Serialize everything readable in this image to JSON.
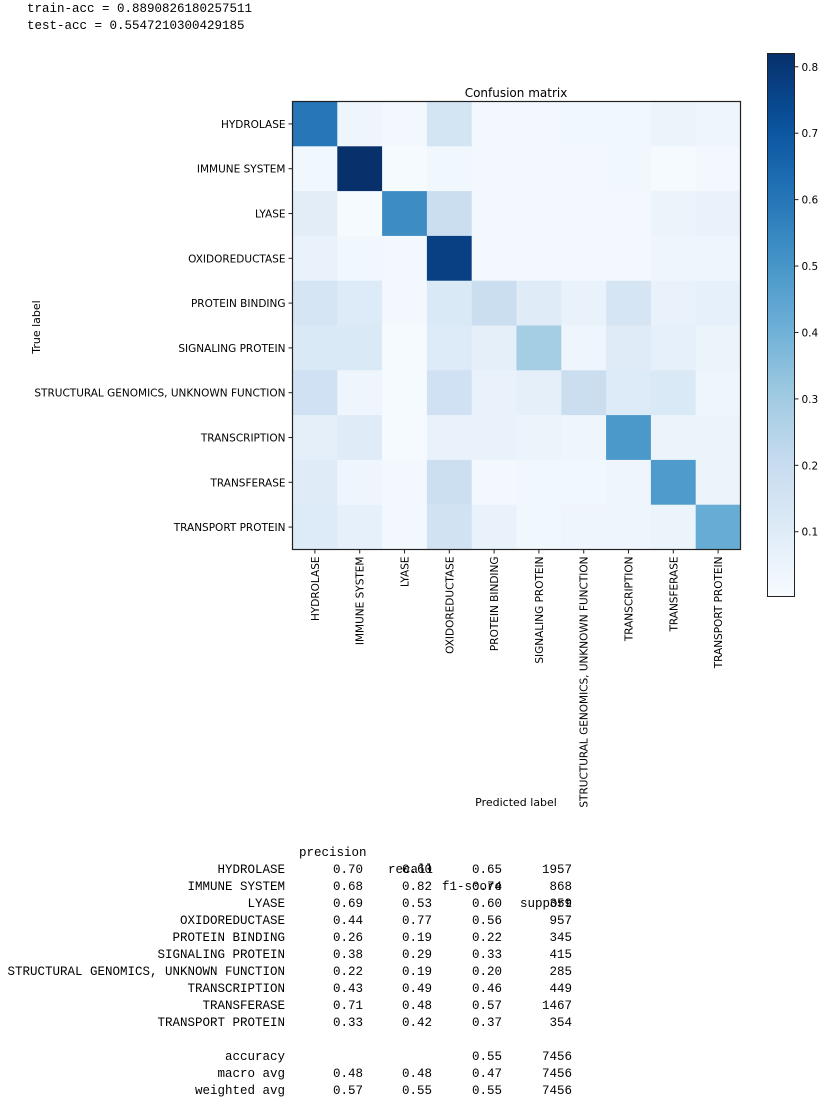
{
  "output": {
    "train_acc_line": "train-acc = 0.8890826180257511",
    "test_acc_line": "test-acc = 0.5547210300429185"
  },
  "chart_data": {
    "type": "heatmap",
    "title": "Confusion matrix",
    "xlabel": "Predicted label",
    "ylabel": "True label",
    "colormap": "Blues",
    "normalized": true,
    "color_range": [
      0.0025,
      0.82
    ],
    "colorbar_ticks": [
      "0.1",
      "0.2",
      "0.3",
      "0.4",
      "0.5",
      "0.6",
      "0.7",
      "0.8"
    ],
    "colorbar_tick_values": [
      0.1,
      0.2,
      0.3,
      0.4,
      0.5,
      0.6,
      0.7,
      0.8
    ],
    "rows": [
      "HYDROLASE",
      "IMMUNE SYSTEM",
      "LYASE",
      "OXIDOREDUCTASE",
      "PROTEIN BINDING",
      "SIGNALING PROTEIN",
      "STRUCTURAL GENOMICS, UNKNOWN FUNCTION",
      "TRANSCRIPTION",
      "TRANSFERASE",
      "TRANSPORT PROTEIN"
    ],
    "columns": [
      "HYDROLASE",
      "IMMUNE SYSTEM",
      "LYASE",
      "OXIDOREDUCTASE",
      "PROTEIN BINDING",
      "SIGNALING PROTEIN",
      "STRUCTURAL GENOMICS, UNKNOWN FUNCTION",
      "TRANSCRIPTION",
      "TRANSFERASE",
      "TRANSPORT PROTEIN"
    ],
    "values": [
      [
        0.6,
        0.04,
        0.02,
        0.15,
        0.02,
        0.02,
        0.03,
        0.03,
        0.05,
        0.04
      ],
      [
        0.03,
        0.82,
        0.01,
        0.03,
        0.02,
        0.02,
        0.02,
        0.03,
        0.01,
        0.02
      ],
      [
        0.09,
        0.01,
        0.53,
        0.19,
        0.02,
        0.02,
        0.02,
        0.02,
        0.05,
        0.06
      ],
      [
        0.06,
        0.03,
        0.02,
        0.77,
        0.02,
        0.02,
        0.02,
        0.02,
        0.04,
        0.04
      ],
      [
        0.14,
        0.11,
        0.02,
        0.12,
        0.19,
        0.1,
        0.06,
        0.14,
        0.06,
        0.07
      ],
      [
        0.12,
        0.12,
        0.01,
        0.11,
        0.08,
        0.29,
        0.04,
        0.1,
        0.07,
        0.05
      ],
      [
        0.17,
        0.04,
        0.01,
        0.17,
        0.06,
        0.08,
        0.19,
        0.11,
        0.12,
        0.04
      ],
      [
        0.08,
        0.1,
        0.01,
        0.06,
        0.06,
        0.05,
        0.04,
        0.49,
        0.05,
        0.05
      ],
      [
        0.1,
        0.04,
        0.02,
        0.18,
        0.02,
        0.03,
        0.03,
        0.04,
        0.48,
        0.05
      ],
      [
        0.11,
        0.07,
        0.02,
        0.16,
        0.06,
        0.03,
        0.04,
        0.04,
        0.05,
        0.42
      ]
    ]
  },
  "report": {
    "headers": [
      "precision",
      "recall",
      "f1-score",
      "support"
    ],
    "rows": [
      {
        "label": "HYDROLASE",
        "precision": "0.70",
        "recall": "0.60",
        "f1": "0.65",
        "support": "1957"
      },
      {
        "label": "IMMUNE SYSTEM",
        "precision": "0.68",
        "recall": "0.82",
        "f1": "0.74",
        "support": "868"
      },
      {
        "label": "LYASE",
        "precision": "0.69",
        "recall": "0.53",
        "f1": "0.60",
        "support": "359"
      },
      {
        "label": "OXIDOREDUCTASE",
        "precision": "0.44",
        "recall": "0.77",
        "f1": "0.56",
        "support": "957"
      },
      {
        "label": "PROTEIN BINDING",
        "precision": "0.26",
        "recall": "0.19",
        "f1": "0.22",
        "support": "345"
      },
      {
        "label": "SIGNALING PROTEIN",
        "precision": "0.38",
        "recall": "0.29",
        "f1": "0.33",
        "support": "415"
      },
      {
        "label": "STRUCTURAL GENOMICS, UNKNOWN FUNCTION",
        "precision": "0.22",
        "recall": "0.19",
        "f1": "0.20",
        "support": "285"
      },
      {
        "label": "TRANSCRIPTION",
        "precision": "0.43",
        "recall": "0.49",
        "f1": "0.46",
        "support": "449"
      },
      {
        "label": "TRANSFERASE",
        "precision": "0.71",
        "recall": "0.48",
        "f1": "0.57",
        "support": "1467"
      },
      {
        "label": "TRANSPORT PROTEIN",
        "precision": "0.33",
        "recall": "0.42",
        "f1": "0.37",
        "support": "354"
      }
    ],
    "summary": [
      {
        "label": "accuracy",
        "precision": "",
        "recall": "",
        "f1": "0.55",
        "support": "7456"
      },
      {
        "label": "macro avg",
        "precision": "0.48",
        "recall": "0.48",
        "f1": "0.47",
        "support": "7456"
      },
      {
        "label": "weighted avg",
        "precision": "0.57",
        "recall": "0.55",
        "f1": "0.55",
        "support": "7456"
      }
    ]
  }
}
